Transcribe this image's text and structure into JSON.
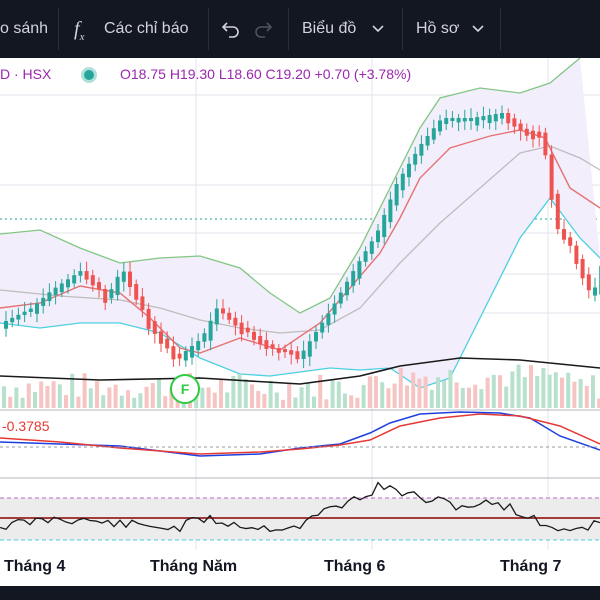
{
  "toolbar": {
    "compare_label": "o sánh",
    "indicators_label": "Các chỉ báo",
    "chart_label": "Biểu đồ",
    "profile_label": "Hồ sơ",
    "fx_glyph": "f",
    "fx_sub": "x",
    "undo_icon": "undo-icon",
    "redo_icon": "redo-icon",
    "chevron_icon": "chevron-down-icon"
  },
  "legend": {
    "symbol": "D · HSX",
    "ohlc": "O18.75  H19.30  L18.60  C19.20  +0.70 (+3.78%)",
    "status_color": "#26a69a"
  },
  "macd": {
    "value": "-0.3785"
  },
  "xaxis": {
    "labels": [
      "Tháng 4",
      "Tháng Năm",
      "Tháng 6",
      "Tháng 7"
    ]
  },
  "event_marker": {
    "letter": "F"
  },
  "colors": {
    "up": "#26a69a",
    "down": "#ef5350",
    "bollinger": "#81c784",
    "ma_fast": "#e57373",
    "ma_slow": "#bdbdbd",
    "lower_band": "#4dd0e1",
    "volume_ma": "#1a1a1a",
    "macd_line": "#1e3fe0",
    "signal_line": "#e53935",
    "toolbar_bg": "#131722"
  }
}
